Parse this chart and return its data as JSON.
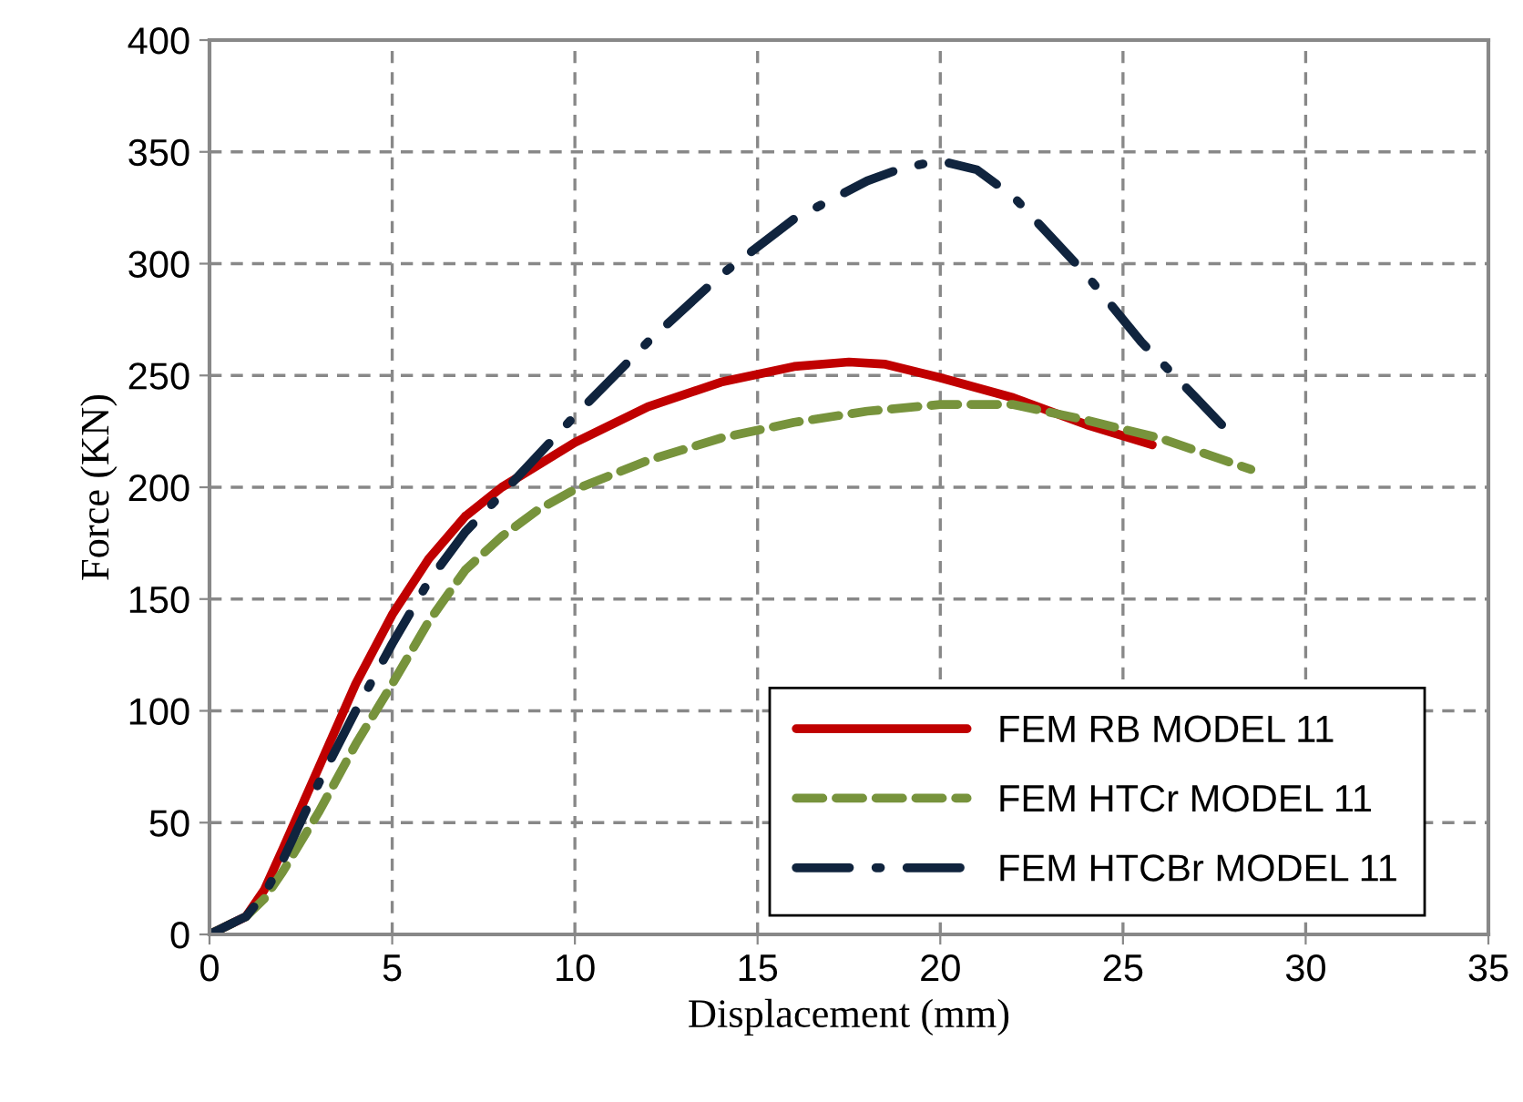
{
  "chart_data": {
    "type": "line",
    "xlabel": "Displacement (mm)",
    "ylabel": "Force (KN)",
    "xlim": [
      0,
      35
    ],
    "xticks": [
      0,
      5,
      10,
      15,
      20,
      25,
      30,
      35
    ],
    "ylim": [
      0,
      400
    ],
    "yticks": [
      0,
      50,
      100,
      150,
      200,
      250,
      300,
      350,
      400
    ],
    "grid": true,
    "legend": "bottom right",
    "marker": "none",
    "series": [
      {
        "name": "FEM RB MODEL 11",
        "color": "#c00000",
        "line_style": "solid",
        "x": [
          0,
          1,
          1.5,
          2,
          3,
          4,
          5,
          6,
          7,
          8,
          10,
          12,
          14,
          16,
          17.5,
          18.5,
          20,
          22,
          24,
          25.8
        ],
        "values": [
          0,
          8,
          20,
          38,
          75,
          112,
          143,
          168,
          187,
          200,
          220,
          236,
          247,
          254,
          256,
          255,
          249,
          240,
          228,
          219
        ]
      },
      {
        "name": "FEM HTCr MODEL 11",
        "color": "#77933c",
        "line_style": "dashed",
        "x": [
          0,
          1,
          1.5,
          2,
          3,
          4,
          5,
          6,
          7,
          8,
          9,
          10,
          12,
          14,
          16,
          18,
          20,
          22,
          24,
          26,
          28.5
        ],
        "values": [
          0,
          8,
          16,
          28,
          55,
          85,
          112,
          140,
          163,
          178,
          190,
          199,
          212,
          222,
          229,
          234,
          237,
          237,
          230,
          222,
          208
        ]
      },
      {
        "name": "FEM HTCBr MODEL 11",
        "color": "#10243e",
        "line_style": "dashdot",
        "x": [
          0,
          1,
          1.5,
          2,
          3,
          4,
          5,
          6,
          7,
          8,
          10,
          12,
          14,
          16,
          18,
          19,
          20,
          21,
          22,
          24,
          25.5,
          27,
          27.7
        ],
        "values": [
          0,
          8,
          18,
          33,
          68,
          100,
          130,
          158,
          180,
          197,
          232,
          265,
          295,
          320,
          337,
          343,
          346,
          342,
          330,
          295,
          265,
          240,
          228
        ]
      }
    ]
  }
}
